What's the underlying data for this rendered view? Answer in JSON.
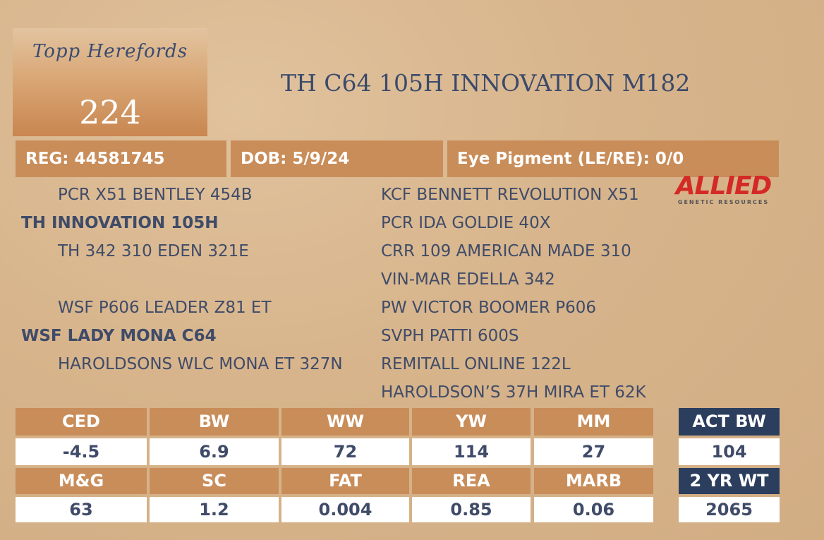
{
  "header": {
    "logo": "Topp Herefords",
    "lot": 224,
    "title": "TH C64 105H INNOVATION M182"
  },
  "info": [
    "REG: 44581745",
    "DOB: 5/9/24",
    "Eye Pigment (LE/RE): 0/0"
  ],
  "sponsor": {
    "name": "ALLIED",
    "tagline": "GENETIC RESOURCES"
  },
  "pedigree": {
    "sire_sire": "PCR X51 BENTLEY 454B",
    "sire": "TH INNOVATION 105H",
    "sire_dam": "TH 342 310 EDEN 321E",
    "dam_sire": "WSF P606 LEADER Z81 ET",
    "dam": "WSF LADY MONA C64",
    "dam_dam": "HAROLDSONS WLC MONA ET 327N",
    "great_grandparents": [
      "KCF BENNETT REVOLUTION X51",
      "PCR IDA GOLDIE 40X",
      "CRR 109 AMERICAN MADE 310",
      "VIN-MAR EDELLA 342",
      "PW VICTOR BOOMER P606",
      "SVPH PATTI 600S",
      "REMITALL ONLINE 122L",
      "HAROLDSON’S 37H MIRA ET 62K"
    ]
  },
  "epd_table": {
    "rows": [
      {
        "headers": [
          "CED",
          "BW",
          "WW",
          "YW",
          "MM"
        ],
        "values": [
          -4.5,
          6.9,
          72,
          114,
          27
        ]
      },
      {
        "headers": [
          "M&G",
          "SC",
          "FAT",
          "REA",
          "MARB"
        ],
        "values": [
          63,
          1.2,
          0.004,
          0.85,
          0.06
        ]
      }
    ]
  },
  "actuals": [
    {
      "label": "ACT BW",
      "value": 104
    },
    {
      "label": "2 YR WT",
      "value": 2065
    }
  ]
}
